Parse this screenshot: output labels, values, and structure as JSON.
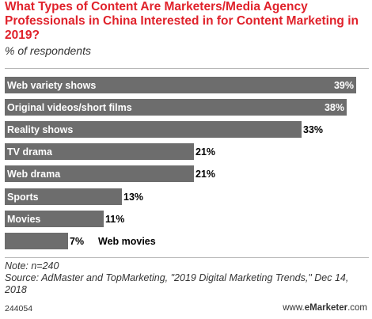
{
  "chart_data": {
    "type": "bar",
    "orientation": "horizontal",
    "title": "What Types of Content Are Marketers/Media Agency Professionals in China Interested in for Content Marketing in 2019?",
    "subtitle": "% of respondents",
    "categories": [
      "Web variety shows",
      "Original videos/short films",
      "Reality shows",
      "TV drama",
      "Web drama",
      "Sports",
      "Movies",
      "Web movies"
    ],
    "values": [
      39,
      38,
      33,
      21,
      21,
      13,
      11,
      7
    ],
    "value_labels": [
      "39%",
      "38%",
      "33%",
      "21%",
      "21%",
      "13%",
      "11%",
      "7%"
    ],
    "xlim": [
      0,
      40
    ],
    "grid": false,
    "legend": "none"
  },
  "note": "Note: n=240",
  "source": "Source: AdMaster and TopMarketing, \"2019 Digital Marketing Trends,\" Dec 14, 2018",
  "footer_id": "244054",
  "footer_brand_prefix": "www.",
  "footer_brand_name": "eMarketer",
  "footer_brand_suffix": ".com",
  "colors": {
    "bar": "#6d6d6d",
    "title": "#e0222b",
    "label_inside": "#ffffff",
    "label_outside": "#000000"
  }
}
